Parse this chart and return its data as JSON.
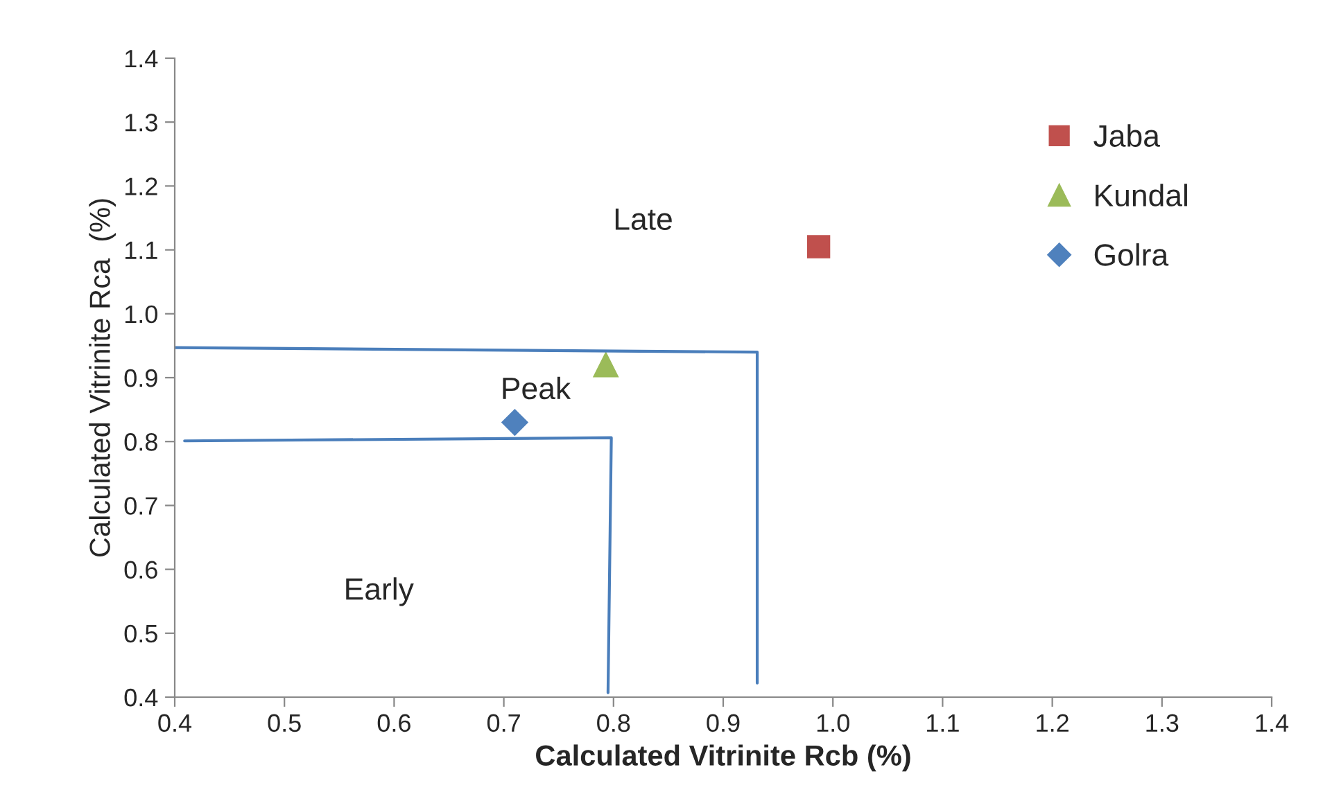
{
  "chart_data": {
    "type": "scatter",
    "xlabel": "Calculated Vitrinite Rcb (%)",
    "ylabel": "Calculated Vitrinite Rca  (%)",
    "xlim": [
      0.4,
      1.4
    ],
    "xticks": [
      {
        "value": 0.4,
        "label": "0.4"
      },
      {
        "value": 0.5,
        "label": "0.5"
      },
      {
        "value": 0.6,
        "label": "0.6"
      },
      {
        "value": 0.7,
        "label": "0.7"
      },
      {
        "value": 0.8,
        "label": "0.8"
      },
      {
        "value": 0.9,
        "label": "0.9"
      },
      {
        "value": 1.0,
        "label": "1.0"
      },
      {
        "value": 1.1,
        "label": "1.1"
      },
      {
        "value": 1.2,
        "label": "1.2"
      },
      {
        "value": 1.3,
        "label": "1.3"
      },
      {
        "value": 1.4,
        "label": "1.4"
      }
    ],
    "ylim": [
      0.4,
      1.4
    ],
    "yticks": [
      {
        "value": 0.4,
        "label": "0.4"
      },
      {
        "value": 0.5,
        "label": "0.5"
      },
      {
        "value": 0.6,
        "label": "0.6"
      },
      {
        "value": 0.7,
        "label": "0.7"
      },
      {
        "value": 0.8,
        "label": "0.8"
      },
      {
        "value": 0.9,
        "label": "0.9"
      },
      {
        "value": 1.0,
        "label": "1.0"
      },
      {
        "value": 1.1,
        "label": "1.1"
      },
      {
        "value": 1.2,
        "label": "1.2"
      },
      {
        "value": 1.3,
        "label": "1.3"
      },
      {
        "value": 1.4,
        "label": "1.4"
      }
    ],
    "grid": false,
    "legend": "top right",
    "series": [
      {
        "name": "Jaba",
        "color": "#c0504d",
        "marker": "square",
        "x": [
          0.987
        ],
        "values": [
          1.105
        ]
      },
      {
        "name": "Kundal",
        "color": "#9bbb59",
        "marker": "triangle",
        "x": [
          0.793
        ],
        "values": [
          0.92
        ]
      },
      {
        "name": "Golra",
        "color": "#4f81bd",
        "marker": "diamond",
        "x": [
          0.71
        ],
        "values": [
          0.83
        ]
      },
      {
        "type": "line",
        "color": "#4a7ebb",
        "marker": "none",
        "x": [
          0.4,
          0.931,
          0.931
        ],
        "values": [
          0.947,
          0.94,
          0.422
        ]
      },
      {
        "type": "line",
        "color": "#4a7ebb",
        "marker": "none",
        "x": [
          0.409,
          0.798,
          0.795
        ],
        "values": [
          0.801,
          0.806,
          0.407
        ]
      }
    ],
    "annotations": [
      "Late",
      "Peak",
      "Early"
    ]
  }
}
